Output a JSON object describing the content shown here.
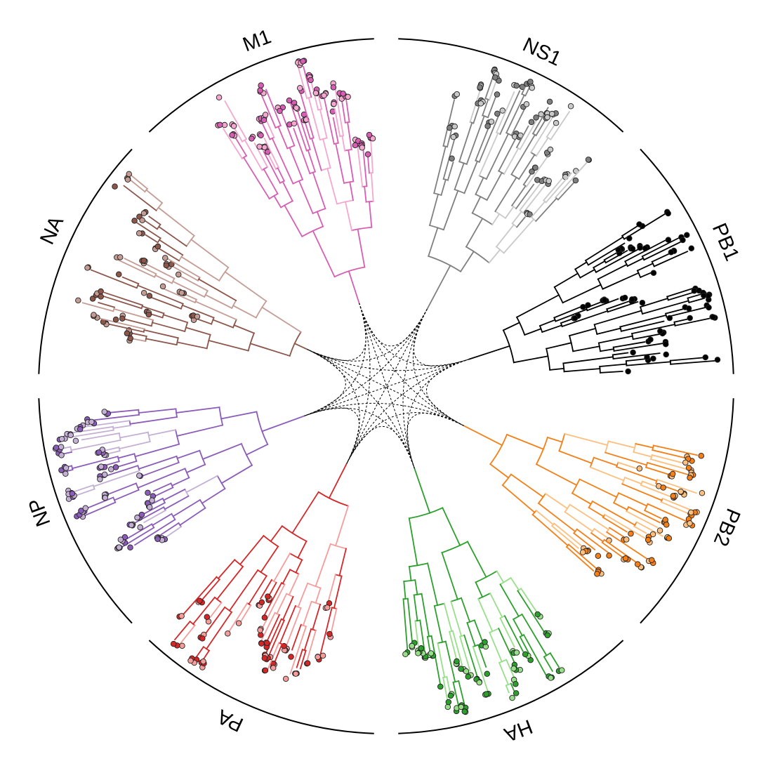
{
  "segments": [
    {
      "label": "M1",
      "colors": [
        "#f4a7cf",
        "#d75fb3"
      ]
    },
    {
      "label": "NS1",
      "colors": [
        "#c9c9c9",
        "#7f7f7f"
      ]
    },
    {
      "label": "PB1",
      "colors": [
        "#000000",
        "#000000"
      ]
    },
    {
      "label": "PB2",
      "colors": [
        "#fdbf7e",
        "#f57f17"
      ]
    },
    {
      "label": "HA",
      "colors": [
        "#98df8a",
        "#2ca02c"
      ]
    },
    {
      "label": "PA",
      "colors": [
        "#f59d9b",
        "#d62728"
      ]
    },
    {
      "label": "NP",
      "colors": [
        "#c5b0d5",
        "#8c5db8"
      ]
    },
    {
      "label": "NA",
      "colors": [
        "#c49c94",
        "#8c564b"
      ]
    }
  ],
  "links": {
    "style": "dashed",
    "color": "#000000"
  }
}
